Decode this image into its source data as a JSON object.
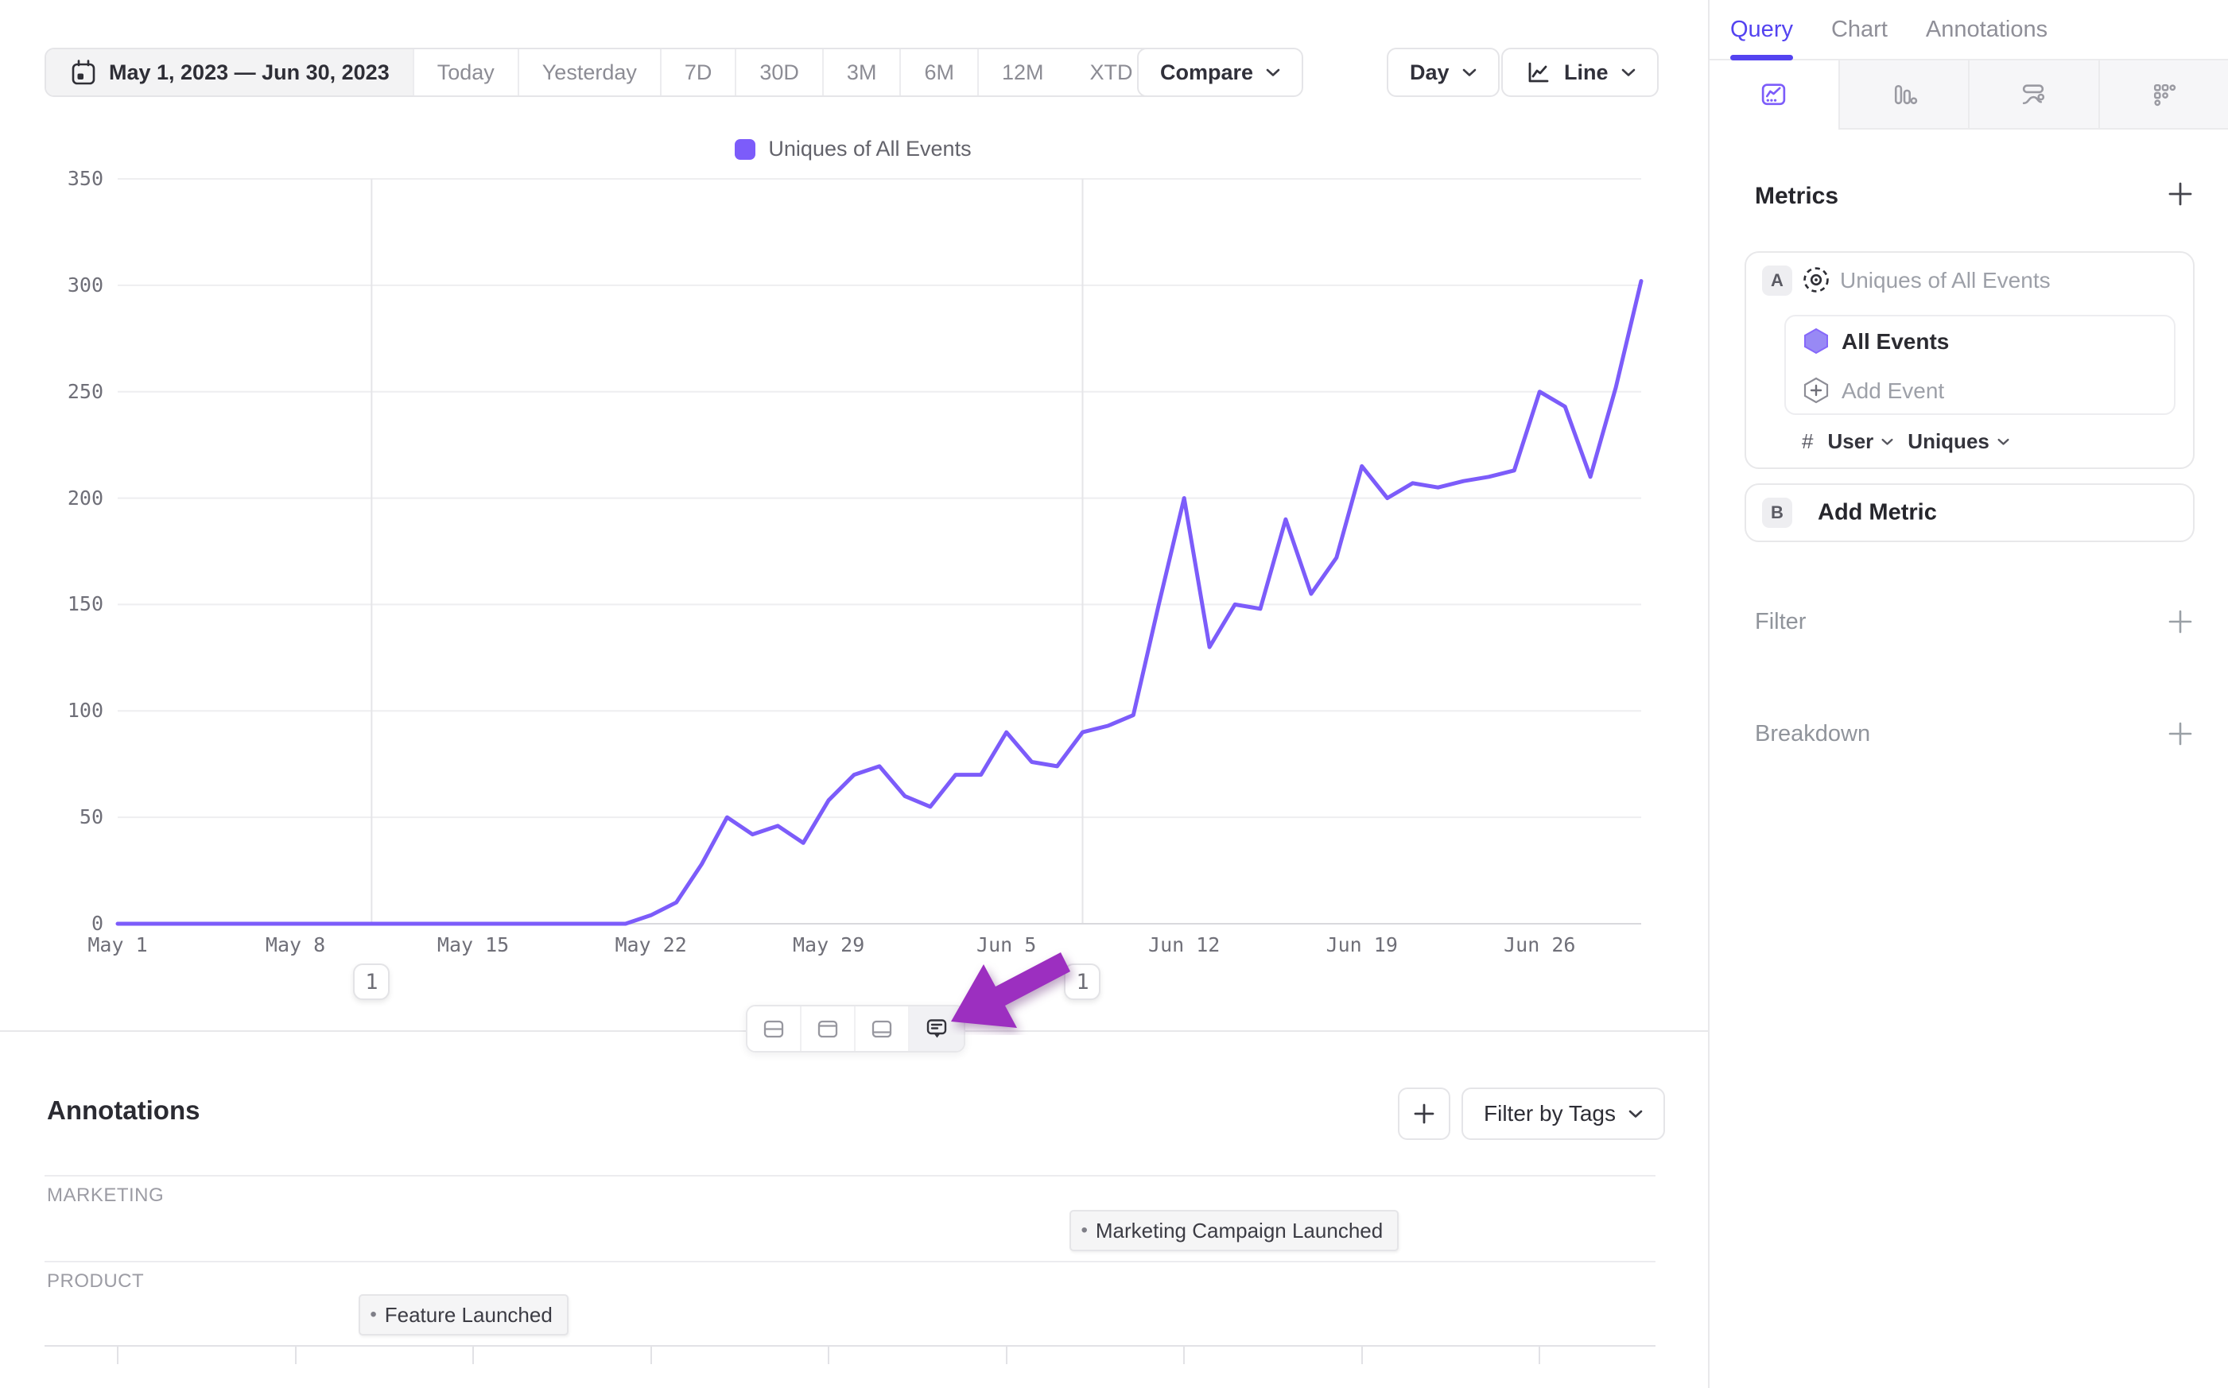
{
  "toolbar": {
    "date_range": "May 1, 2023 — Jun 30, 2023",
    "presets": [
      "Today",
      "Yesterday",
      "7D",
      "30D",
      "3M",
      "6M",
      "12M"
    ],
    "xtd_label": "XTD",
    "compare_label": "Compare",
    "granularity_label": "Day",
    "chart_type_label": "Line"
  },
  "chart_data": {
    "type": "line",
    "legend": "Uniques of All Events",
    "start_date": "May 1, 2023",
    "end_date": "Jun 30, 2023",
    "series": [
      {
        "name": "Uniques of All Events",
        "color": "#7c5cfa",
        "values": [
          0,
          0,
          0,
          0,
          0,
          0,
          0,
          0,
          0,
          0,
          0,
          0,
          0,
          0,
          0,
          0,
          0,
          0,
          0,
          0,
          0,
          4,
          10,
          28,
          50,
          42,
          46,
          38,
          58,
          70,
          74,
          60,
          55,
          70,
          70,
          90,
          76,
          74,
          90,
          93,
          98,
          150,
          200,
          130,
          150,
          148,
          190,
          155,
          172,
          215,
          200,
          207,
          205,
          208,
          210,
          213,
          250,
          243,
          210,
          252,
          302
        ]
      }
    ],
    "x_tick_labels": [
      "May 1",
      "May 8",
      "May 15",
      "May 22",
      "May 29",
      "Jun 5",
      "Jun 12",
      "Jun 19",
      "Jun 26"
    ],
    "x_tick_day_indices": [
      0,
      7,
      14,
      21,
      28,
      35,
      42,
      49,
      56
    ],
    "y_ticks": [
      0,
      50,
      100,
      150,
      200,
      250,
      300,
      350
    ],
    "ylim": [
      0,
      350
    ],
    "grid": true,
    "legend_position": "top-center",
    "annotation_markers": [
      {
        "date": "May 11",
        "day_index": 10,
        "count": "1"
      },
      {
        "date": "Jun 8",
        "day_index": 38,
        "count": "1"
      }
    ]
  },
  "mini_toolbar": {
    "buttons": [
      "layout-split-rows",
      "layout-top-panel",
      "layout-bottom-panel",
      "annotations-comments"
    ],
    "active": "annotations-comments"
  },
  "annotations_panel": {
    "title": "Annotations",
    "add_label": "+",
    "filter_by_tags_label": "Filter by Tags",
    "groups": [
      {
        "name": "MARKETING",
        "items": [
          {
            "label": "Marketing Campaign Launched",
            "day_index": 38
          }
        ]
      },
      {
        "name": "PRODUCT",
        "items": [
          {
            "label": "Feature Launched",
            "day_index": 10
          }
        ]
      }
    ]
  },
  "sidebar": {
    "tabs": [
      {
        "label": "Query",
        "active": true
      },
      {
        "label": "Chart",
        "active": false
      },
      {
        "label": "Annotations",
        "active": false
      }
    ],
    "view_tabs": [
      "insights-line",
      "bar-chart",
      "flows",
      "retention-grid"
    ],
    "metrics": {
      "title": "Metrics",
      "add_label": "+",
      "metric": {
        "badge": "A",
        "name_placeholder": "Uniques of All Events",
        "events": [
          {
            "label": "All Events"
          }
        ],
        "add_event_label": "Add Event",
        "aggregation": {
          "prefix": "#",
          "entity": "User",
          "function": "Uniques"
        }
      },
      "add_metric": {
        "badge": "B",
        "label": "Add Metric"
      }
    },
    "filter": {
      "label": "Filter",
      "add_label": "+"
    },
    "breakdown": {
      "label": "Breakdown",
      "add_label": "+"
    }
  },
  "icons": {
    "bullet": "•",
    "plus": "+"
  },
  "colors": {
    "accent_purple": "#7c5cfa",
    "tab_purple": "#5443f0",
    "arrow_purple": "#9c2fc0",
    "grid_line": "#eeeef0",
    "axis_text": "#6f6f78"
  }
}
